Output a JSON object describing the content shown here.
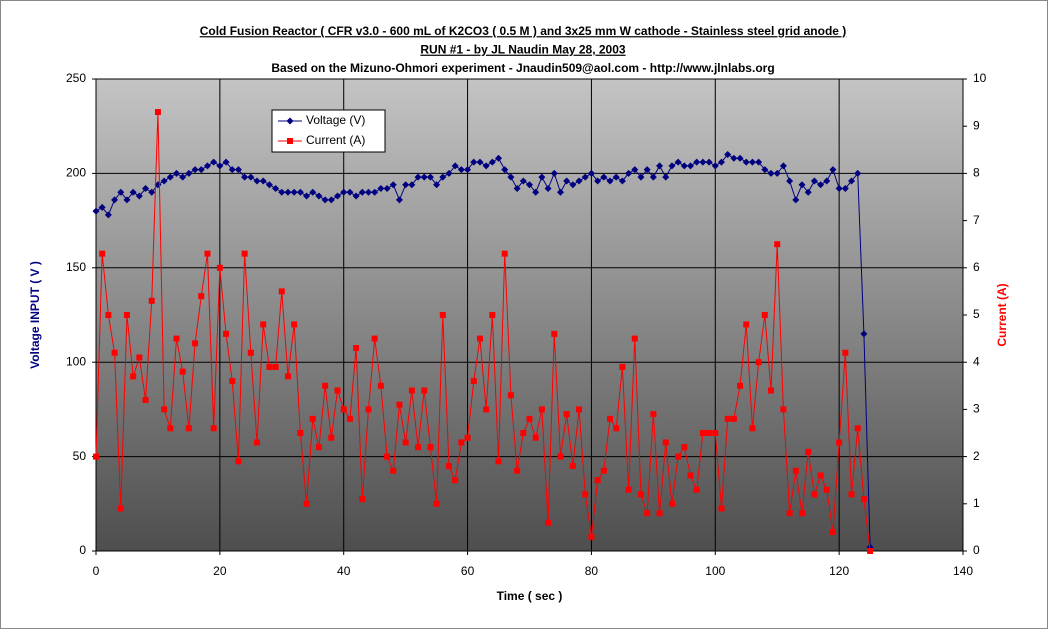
{
  "chart_data": {
    "type": "line",
    "title_lines": [
      "Cold Fusion Reactor ( CFR v3.0 - 600 mL of K2CO3 ( 0.5 M ) and 3x25 mm W cathode - Stainless steel grid anode  )",
      "RUN #1 - by JL Naudin May 28, 2003",
      "Based on the Mizuno-Ohmori experiment - Jnaudin509@aol.com - http://www.jlnlabs.org"
    ],
    "x_label": "Time ( sec )",
    "y_label": "Voltage INPUT ( V )",
    "y2_label": "Current (A)",
    "x": [
      0,
      1,
      2,
      3,
      4,
      5,
      6,
      7,
      8,
      9,
      10,
      11,
      12,
      13,
      14,
      15,
      16,
      17,
      18,
      19,
      20,
      21,
      22,
      23,
      24,
      25,
      26,
      27,
      28,
      29,
      30,
      31,
      32,
      33,
      34,
      35,
      36,
      37,
      38,
      39,
      40,
      41,
      42,
      43,
      44,
      45,
      46,
      47,
      48,
      49,
      50,
      51,
      52,
      53,
      54,
      55,
      56,
      57,
      58,
      59,
      60,
      61,
      62,
      63,
      64,
      65,
      66,
      67,
      68,
      69,
      70,
      71,
      72,
      73,
      74,
      75,
      76,
      77,
      78,
      79,
      80,
      81,
      82,
      83,
      84,
      85,
      86,
      87,
      88,
      89,
      90,
      91,
      92,
      93,
      94,
      95,
      96,
      97,
      98,
      99,
      100,
      101,
      102,
      103,
      104,
      105,
      106,
      107,
      108,
      109,
      110,
      111,
      112,
      113,
      114,
      115,
      116,
      117,
      118,
      119,
      120,
      121,
      122,
      123,
      124,
      125
    ],
    "series": [
      {
        "name": "Voltage (V)",
        "color": "#000080",
        "marker": "diamond",
        "values": [
          180,
          182,
          178,
          186,
          190,
          186,
          190,
          188,
          192,
          190,
          194,
          196,
          198,
          200,
          198,
          200,
          202,
          202,
          204,
          206,
          204,
          206,
          202,
          202,
          198,
          198,
          196,
          196,
          194,
          192,
          190,
          190,
          190,
          190,
          188,
          190,
          188,
          186,
          186,
          188,
          190,
          190,
          188,
          190,
          190,
          190,
          192,
          192,
          194,
          186,
          194,
          194,
          198,
          198,
          198,
          194,
          198,
          200,
          204,
          202,
          202,
          206,
          206,
          204,
          206,
          208,
          202,
          198,
          192,
          196,
          194,
          190,
          198,
          192,
          200,
          190,
          196,
          194,
          196,
          198,
          200,
          196,
          198,
          196,
          198,
          196,
          200,
          202,
          198,
          202,
          198,
          204,
          198,
          204,
          206,
          204,
          204,
          206,
          206,
          206,
          204,
          206,
          210,
          208,
          208,
          206,
          206,
          206,
          202,
          200,
          200,
          204,
          196,
          186,
          194,
          190,
          196,
          194,
          196,
          202,
          192,
          192,
          196,
          200,
          115,
          2
        ]
      },
      {
        "name": "Current (A)",
        "color": "#ff0000",
        "marker": "square",
        "axis": "y2",
        "values": [
          2.0,
          6.3,
          5.0,
          4.2,
          0.9,
          5.0,
          3.7,
          4.1,
          3.2,
          5.3,
          9.3,
          3.0,
          2.6,
          4.5,
          3.8,
          2.6,
          4.4,
          5.4,
          6.3,
          2.6,
          6.0,
          4.6,
          3.6,
          1.9,
          6.3,
          4.2,
          2.3,
          4.8,
          3.9,
          3.9,
          5.5,
          3.7,
          4.8,
          2.5,
          1.0,
          2.8,
          2.2,
          3.5,
          2.4,
          3.4,
          3.0,
          2.8,
          4.3,
          1.1,
          3.0,
          4.5,
          3.5,
          2.0,
          1.7,
          3.1,
          2.3,
          3.4,
          2.2,
          3.4,
          2.2,
          1.0,
          5.0,
          1.8,
          1.5,
          2.3,
          2.4,
          3.6,
          4.5,
          3.0,
          5.0,
          1.9,
          6.3,
          3.3,
          1.7,
          2.5,
          2.8,
          2.4,
          3.0,
          0.6,
          4.6,
          2.0,
          2.9,
          1.8,
          3.0,
          1.2,
          0.3,
          1.5,
          1.7,
          2.8,
          2.6,
          3.9,
          1.3,
          4.5,
          1.2,
          0.8,
          2.9,
          0.8,
          2.3,
          1.0,
          2.0,
          2.2,
          1.6,
          1.3,
          2.5,
          2.5,
          2.5,
          0.9,
          2.8,
          2.8,
          3.5,
          4.8,
          2.6,
          4.0,
          5.0,
          3.4,
          6.5,
          3.0,
          0.8,
          1.7,
          0.8,
          2.1,
          1.2,
          1.6,
          1.3,
          0.4,
          2.3,
          4.2,
          1.2,
          2.6,
          1.1,
          0.0
        ]
      }
    ],
    "xlim": [
      0,
      140
    ],
    "xticks": [
      0,
      20,
      40,
      60,
      80,
      100,
      120,
      140
    ],
    "ylim": [
      0,
      250
    ],
    "yticks": [
      0,
      50,
      100,
      150,
      200,
      250
    ],
    "y2lim": [
      0,
      10
    ],
    "y2ticks": [
      0,
      1,
      2,
      3,
      4,
      5,
      6,
      7,
      8,
      9,
      10
    ],
    "grid": true,
    "legend": "top-left"
  }
}
